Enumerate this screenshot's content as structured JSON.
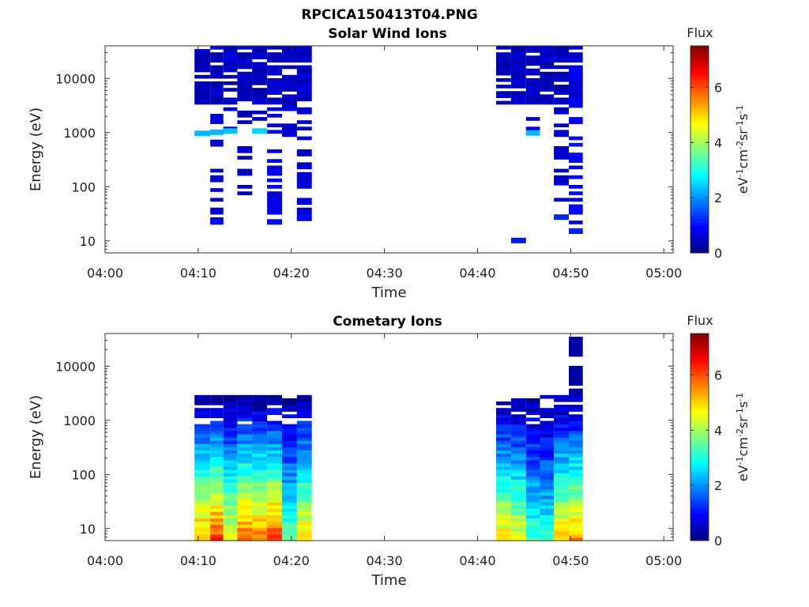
{
  "figure_title": "RPCICA150413T04.PNG",
  "chart_data": [
    {
      "type": "heatmap",
      "title": "Solar Wind Ions",
      "xlabel": "Time",
      "ylabel": "Energy (eV)",
      "x_ticks": [
        "04:00",
        "04:10",
        "04:20",
        "04:30",
        "04:40",
        "04:50",
        "05:00"
      ],
      "x_range": [
        "04:00",
        "05:01"
      ],
      "y_scale": "log",
      "y_ticks": [
        10,
        100,
        1000,
        10000
      ],
      "y_range": [
        6,
        40000
      ],
      "colorbar": {
        "title": "Flux",
        "units": "eV-1cm-2sr-1s-1",
        "ticks": [
          0,
          2,
          4,
          6
        ],
        "range": [
          0,
          7.5
        ]
      },
      "columns": [
        {
          "t0": "04:09.6",
          "t1": "04:11.3",
          "emin": 3500,
          "emax": 40000,
          "level": 0.5,
          "low": [
            {
              "e": 950,
              "level": 2.3
            }
          ]
        },
        {
          "t0": "04:11.3",
          "t1": "04:12.7",
          "emin": 20,
          "emax": 40000,
          "level": 0.4,
          "low": [
            {
              "e": 1000,
              "level": 2.3
            },
            {
              "e": 22,
              "level": 1.0
            }
          ]
        },
        {
          "t0": "04:12.7",
          "t1": "04:14.2",
          "emin": 1000,
          "emax": 40000,
          "level": 0.5,
          "low": [
            {
              "e": 1050,
              "level": 2.4
            }
          ]
        },
        {
          "t0": "04:14.2",
          "t1": "04:15.8",
          "emin": 60,
          "emax": 40000,
          "level": 0.4,
          "low": []
        },
        {
          "t0": "04:15.8",
          "t1": "04:17.4",
          "emin": 1000,
          "emax": 40000,
          "level": 0.5,
          "low": [
            {
              "e": 1050,
              "level": 2.5
            }
          ]
        },
        {
          "t0": "04:17.4",
          "t1": "04:19.0",
          "emin": 20,
          "emax": 40000,
          "level": 0.6,
          "low": [
            {
              "e": 22,
              "level": 1.0
            }
          ]
        },
        {
          "t0": "04:19.0",
          "t1": "04:20.6",
          "emin": 650,
          "emax": 40000,
          "level": 0.4,
          "low": []
        },
        {
          "t0": "04:20.6",
          "t1": "04:22.2",
          "emin": 25,
          "emax": 40000,
          "level": 0.5,
          "low": [
            {
              "e": 27,
              "level": 1.0
            }
          ]
        },
        {
          "t0": "04:42.0",
          "t1": "04:43.6",
          "emin": 3200,
          "emax": 40000,
          "level": 0.4,
          "low": []
        },
        {
          "t0": "04:43.6",
          "t1": "04:45.2",
          "emin": 3500,
          "emax": 40000,
          "level": 0.5,
          "low": [
            {
              "e": 10,
              "level": 1.1
            }
          ]
        },
        {
          "t0": "04:45.2",
          "t1": "04:46.7",
          "emin": 950,
          "emax": 40000,
          "level": 0.5,
          "low": [
            {
              "e": 970,
              "level": 2.3
            }
          ]
        },
        {
          "t0": "04:46.7",
          "t1": "04:48.2",
          "emin": 3500,
          "emax": 40000,
          "level": 0.4,
          "low": []
        },
        {
          "t0": "04:48.2",
          "t1": "04:49.8",
          "emin": 25,
          "emax": 40000,
          "level": 0.5,
          "low": [
            {
              "e": 27,
              "level": 1.2
            }
          ]
        },
        {
          "t0": "04:49.8",
          "t1": "04:51.3",
          "emin": 14,
          "emax": 40000,
          "level": 0.8,
          "low": [
            {
              "e": 15,
              "level": 1.2
            }
          ]
        }
      ]
    },
    {
      "type": "heatmap",
      "title": "Cometary Ions",
      "xlabel": "Time",
      "ylabel": "Energy (eV)",
      "x_ticks": [
        "04:00",
        "04:10",
        "04:20",
        "04:30",
        "04:40",
        "04:50",
        "05:00"
      ],
      "x_range": [
        "04:00",
        "05:01"
      ],
      "y_scale": "log",
      "y_ticks": [
        10,
        100,
        1000,
        10000
      ],
      "y_range": [
        6,
        40000
      ],
      "colorbar": {
        "title": "Flux",
        "units": "eV-1cm-2sr-1s-1",
        "ticks": [
          0,
          2,
          4,
          6
        ],
        "range": [
          0,
          7.5
        ]
      },
      "columns": [
        {
          "t0": "04:09.6",
          "t1": "04:11.3",
          "emin": 6,
          "emax": 3100,
          "peak": 5.3
        },
        {
          "t0": "04:11.3",
          "t1": "04:12.7",
          "emin": 6,
          "emax": 3100,
          "peak": 6.0
        },
        {
          "t0": "04:12.7",
          "t1": "04:14.2",
          "emin": 6,
          "emax": 3100,
          "peak": 4.5
        },
        {
          "t0": "04:14.2",
          "t1": "04:15.8",
          "emin": 6,
          "emax": 3100,
          "peak": 5.7
        },
        {
          "t0": "04:15.8",
          "t1": "04:17.4",
          "emin": 6,
          "emax": 3100,
          "peak": 5.5
        },
        {
          "t0": "04:17.4",
          "t1": "04:19.0",
          "emin": 6,
          "emax": 3100,
          "peak": 6.0
        },
        {
          "t0": "04:19.0",
          "t1": "04:20.6",
          "emin": 6,
          "emax": 3100,
          "peak": 3.2
        },
        {
          "t0": "04:20.6",
          "t1": "04:22.2",
          "emin": 6,
          "emax": 3100,
          "peak": 4.9
        },
        {
          "t0": "04:42.0",
          "t1": "04:43.6",
          "emin": 6,
          "emax": 2800,
          "peak": 4.8
        },
        {
          "t0": "04:43.6",
          "t1": "04:45.2",
          "emin": 6,
          "emax": 2900,
          "peak": 4.4
        },
        {
          "t0": "04:45.2",
          "t1": "04:46.7",
          "emin": 6,
          "emax": 2800,
          "peak": 3.1
        },
        {
          "t0": "04:46.7",
          "t1": "04:48.2",
          "emin": 6,
          "emax": 2900,
          "peak": 2.8
        },
        {
          "t0": "04:48.2",
          "t1": "04:49.8",
          "emin": 6,
          "emax": 2900,
          "peak": 4.9
        },
        {
          "t0": "04:49.8",
          "t1": "04:51.3",
          "emin": 6,
          "emax": 33000,
          "peak": 5.2
        }
      ]
    }
  ]
}
